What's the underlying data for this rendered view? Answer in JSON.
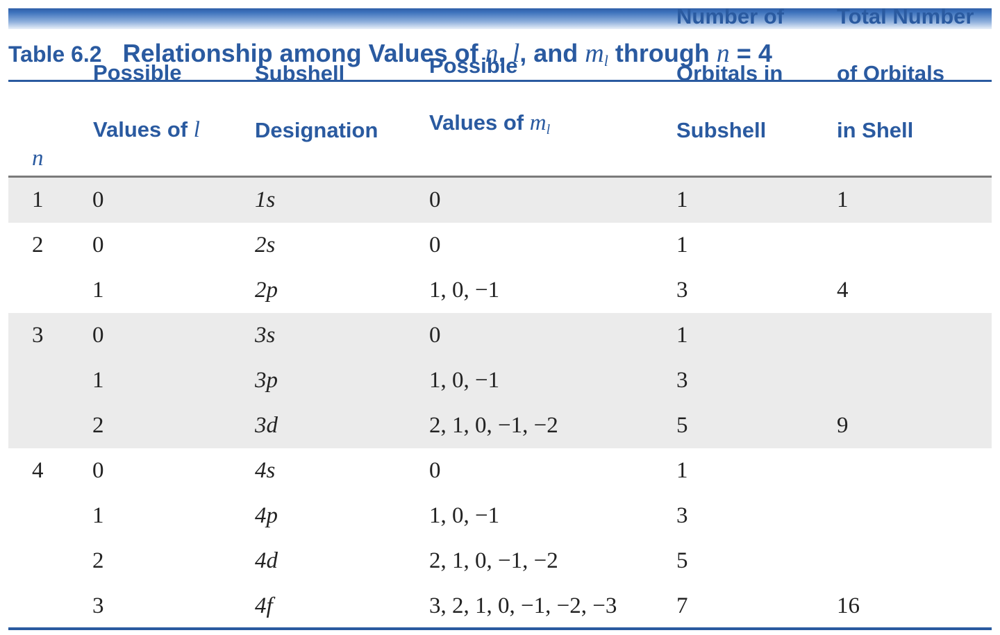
{
  "table": {
    "label": "Table 6.2",
    "title_parts": {
      "t1": "Relationship among Values of ",
      "n": "n",
      "t2": ", ",
      "l": "l",
      "t3": ", and ",
      "m": "m",
      "m_sub": "l",
      "t4": " through ",
      "n2": "n",
      "t5": " = 4"
    },
    "headers": {
      "n": "n",
      "l_line1": "Possible",
      "l_line2": "Values of ",
      "l_var": "l",
      "sub_line1": "Subshell",
      "sub_line2": "Designation",
      "ml_line1": "Possible",
      "ml_line2": "Values of ",
      "ml_var": "m",
      "ml_sub": "l",
      "num_line1": "Number of",
      "num_line2": "Orbitals in",
      "num_line3": "Subshell",
      "tot_line1": "Total Number",
      "tot_line2": "of Orbitals",
      "tot_line3": "in Shell"
    },
    "rows": [
      {
        "n": "1",
        "l": "0",
        "subshell": "1s",
        "ml": "0",
        "orbitals": "1",
        "total": "1"
      },
      {
        "n": "2",
        "l": "0",
        "subshell": "2s",
        "ml": "0",
        "orbitals": "1",
        "total": ""
      },
      {
        "n": "",
        "l": "1",
        "subshell": "2p",
        "ml": "1, 0, −1",
        "orbitals": "3",
        "total": "4"
      },
      {
        "n": "3",
        "l": "0",
        "subshell": "3s",
        "ml": "0",
        "orbitals": "1",
        "total": ""
      },
      {
        "n": "",
        "l": "1",
        "subshell": "3p",
        "ml": "1, 0, −1",
        "orbitals": "3",
        "total": ""
      },
      {
        "n": "",
        "l": "2",
        "subshell": "3d",
        "ml": "2, 1, 0, −1, −2",
        "orbitals": "5",
        "total": "9"
      },
      {
        "n": "4",
        "l": "0",
        "subshell": "4s",
        "ml": "0",
        "orbitals": "1",
        "total": ""
      },
      {
        "n": "",
        "l": "1",
        "subshell": "4p",
        "ml": "1, 0, −1",
        "orbitals": "3",
        "total": ""
      },
      {
        "n": "",
        "l": "2",
        "subshell": "4d",
        "ml": "2, 1, 0, −1, −2",
        "orbitals": "5",
        "total": ""
      },
      {
        "n": "",
        "l": "3",
        "subshell": "4f",
        "ml": "3, 2, 1, 0, −1, −2, −3",
        "orbitals": "7",
        "total": "16"
      }
    ]
  },
  "colors": {
    "accent": "#2a5aa0",
    "shade": "#ebebeb",
    "text": "#222222"
  }
}
